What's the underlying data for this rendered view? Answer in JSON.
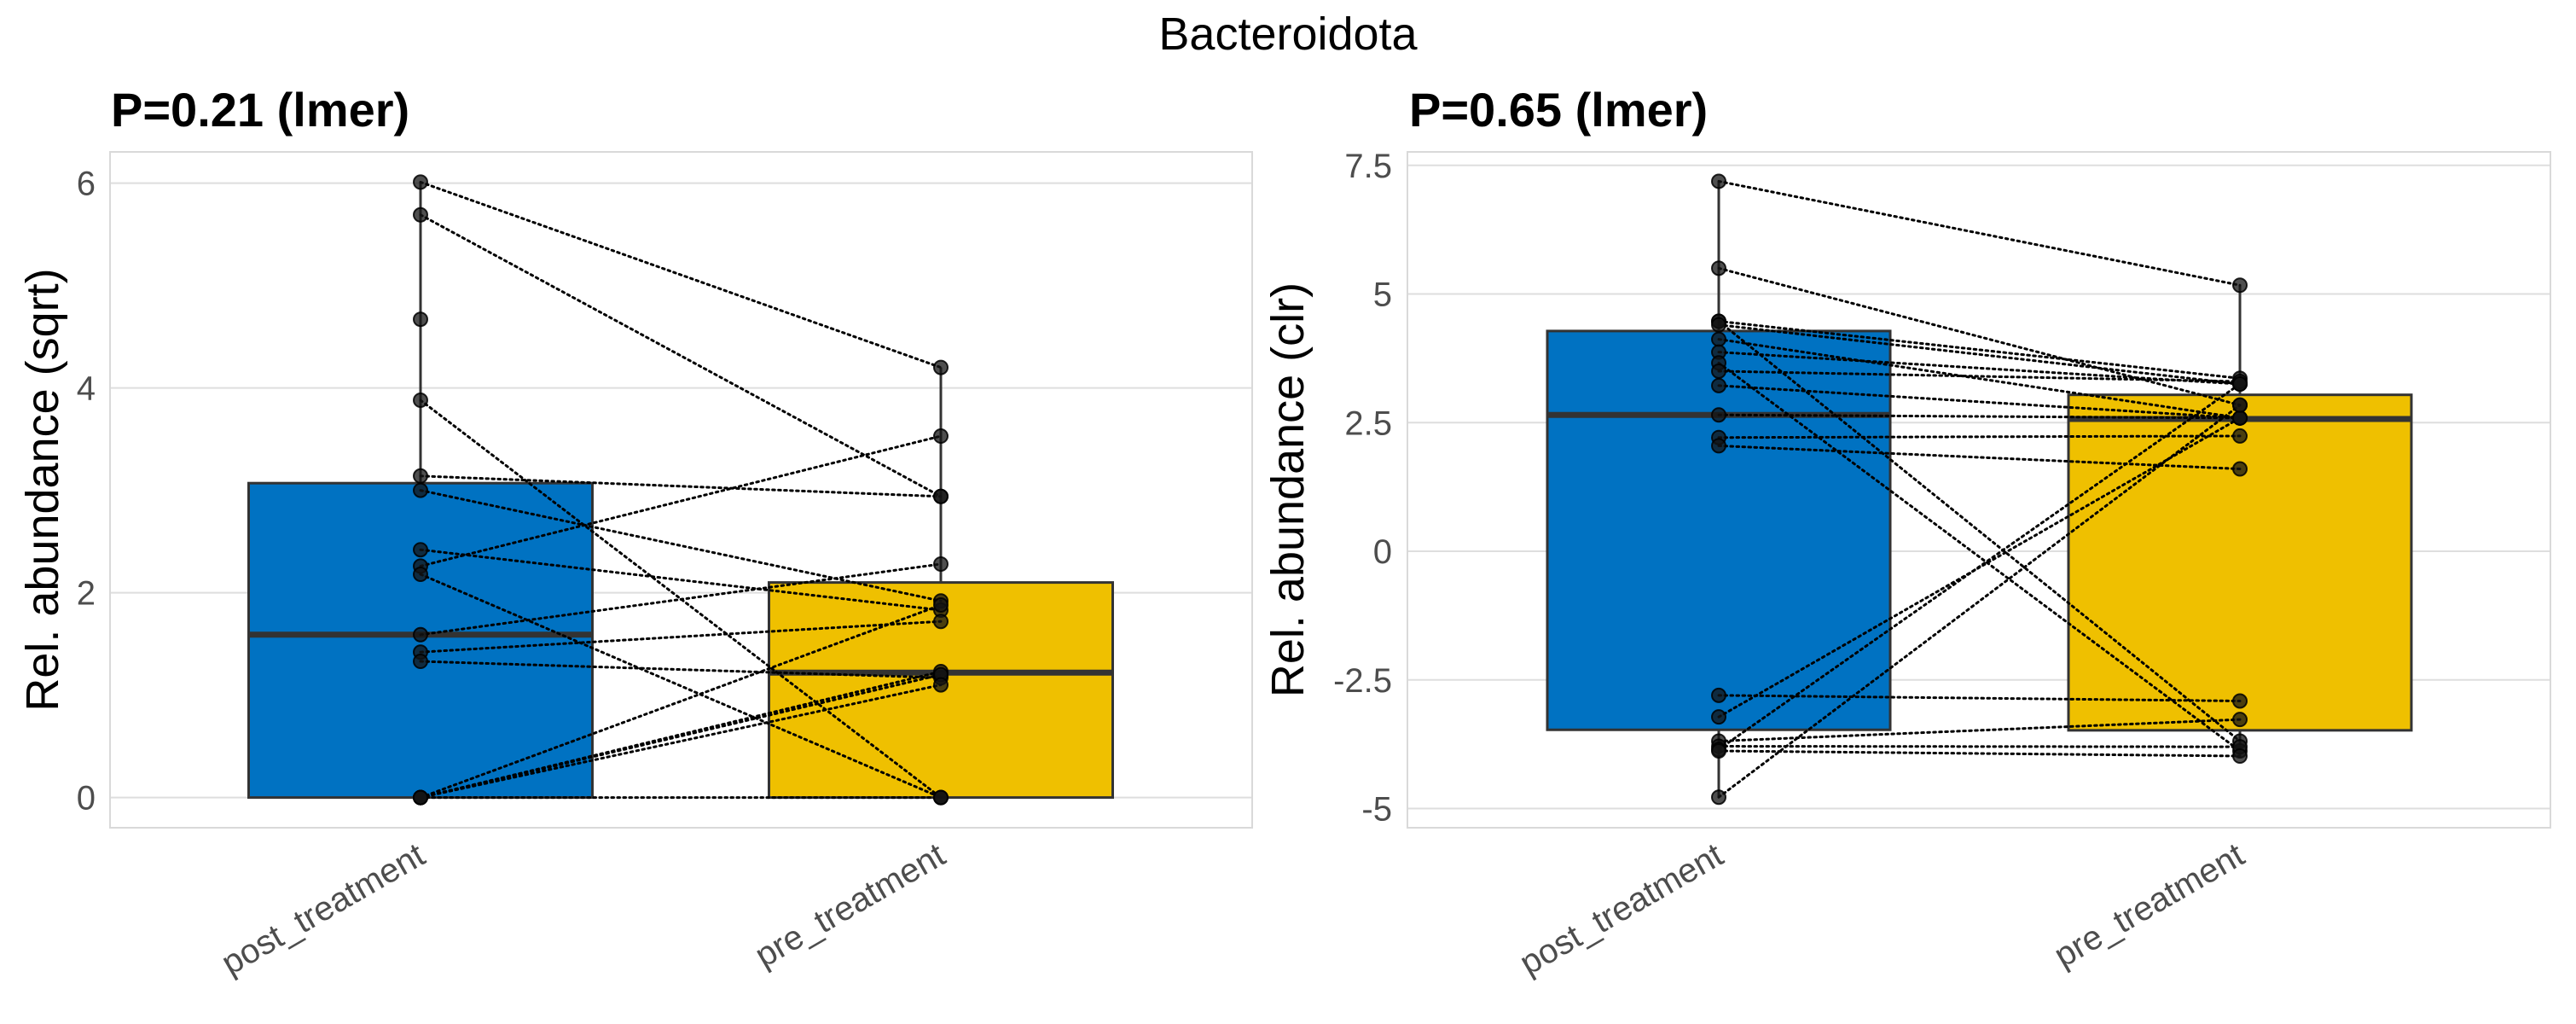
{
  "figure": {
    "title": "Bacteroidota"
  },
  "chart_data": [
    {
      "type": "box",
      "title": "P=0.21 (lmer)",
      "xlabel": "",
      "ylabel": "Rel. abundance (sqrt)",
      "categories": [
        "post_treatment",
        "pre_treatment"
      ],
      "ylim": [
        -0.3,
        6.3
      ],
      "yticks": [
        0,
        2,
        4,
        6
      ],
      "ytick_labels": [
        "0",
        "2",
        "4",
        "6"
      ],
      "grid": true,
      "colors": {
        "post_treatment": "#0072C2",
        "pre_treatment": "#EFC000"
      },
      "boxes": [
        {
          "category": "post_treatment",
          "q1": 0,
          "median": 1.59,
          "q3": 3.07,
          "whisker_low": 0,
          "whisker_high": 6.01
        },
        {
          "category": "pre_treatment",
          "q1": 0,
          "median": 1.22,
          "q3": 2.1,
          "whisker_low": 0,
          "whisker_high": 4.2
        }
      ],
      "pairs": [
        [
          6.01,
          4.2
        ],
        [
          5.69,
          2.94
        ],
        [
          3.88,
          0
        ],
        [
          3.14,
          2.94
        ],
        [
          3.0,
          1.92
        ],
        [
          2.42,
          1.83
        ],
        [
          2.26,
          3.53
        ],
        [
          2.18,
          0
        ],
        [
          1.59,
          2.28
        ],
        [
          1.42,
          1.72
        ],
        [
          1.33,
          1.17
        ],
        [
          0,
          1.23
        ],
        [
          0,
          1.2
        ],
        [
          0,
          1.1
        ],
        [
          0,
          1.88
        ],
        [
          0,
          0
        ]
      ],
      "unpaired_post": [
        4.67
      ]
    },
    {
      "type": "box",
      "title": "P=0.65 (lmer)",
      "xlabel": "",
      "ylabel": "Rel. abundance (clr)",
      "categories": [
        "post_treatment",
        "pre_treatment"
      ],
      "ylim": [
        -5.5,
        7.7
      ],
      "yticks": [
        -5,
        -2.5,
        0,
        2.5,
        5,
        7.5
      ],
      "ytick_labels": [
        "-5",
        "-2.5",
        "0",
        "2.5",
        "5",
        "7.5"
      ],
      "grid": true,
      "colors": {
        "post_treatment": "#0072C2",
        "pre_treatment": "#EFC000"
      },
      "boxes": [
        {
          "category": "post_treatment",
          "q1": -3.47,
          "median": 2.65,
          "q3": 4.28,
          "whisker_low": -4.78,
          "whisker_high": 7.19
        },
        {
          "category": "pre_treatment",
          "q1": -3.48,
          "median": 2.57,
          "q3": 3.04,
          "whisker_low": -3.98,
          "whisker_high": 5.17
        }
      ],
      "pairs": [
        [
          7.19,
          5.17
        ],
        [
          5.5,
          2.84
        ],
        [
          4.47,
          3.36
        ],
        [
          4.47,
          -3.69
        ],
        [
          4.4,
          3.25
        ],
        [
          4.12,
          2.59
        ],
        [
          3.87,
          3.25
        ],
        [
          3.66,
          -3.88
        ],
        [
          3.5,
          3.3
        ],
        [
          3.22,
          2.59
        ],
        [
          2.65,
          2.59
        ],
        [
          2.21,
          2.24
        ],
        [
          2.05,
          1.6
        ],
        [
          -2.8,
          -2.91
        ],
        [
          -3.22,
          2.59
        ],
        [
          -3.69,
          -3.27
        ],
        [
          -3.79,
          -3.8
        ],
        [
          -3.85,
          3.25
        ],
        [
          -3.88,
          -3.98
        ],
        [
          -4.78,
          2.84
        ]
      ],
      "unpaired_post": []
    }
  ]
}
